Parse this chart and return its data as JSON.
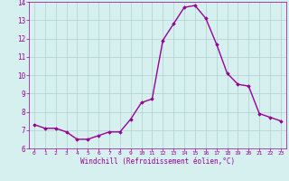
{
  "x": [
    0,
    1,
    2,
    3,
    4,
    5,
    6,
    7,
    8,
    9,
    10,
    11,
    12,
    13,
    14,
    15,
    16,
    17,
    18,
    19,
    20,
    21,
    22,
    23
  ],
  "y": [
    7.3,
    7.1,
    7.1,
    6.9,
    6.5,
    6.5,
    6.7,
    6.9,
    6.9,
    7.6,
    8.5,
    8.7,
    11.9,
    12.8,
    13.7,
    13.8,
    13.1,
    11.7,
    10.1,
    9.5,
    9.4,
    7.9,
    7.7,
    7.5
  ],
  "line_color": "#990099",
  "marker": "D",
  "marker_size": 1.8,
  "bg_color": "#d6f0f0",
  "grid_color": "#b0d0d0",
  "xlabel": "Windchill (Refroidissement éolien,°C)",
  "xlabel_color": "#990099",
  "tick_color": "#990099",
  "ylim": [
    6,
    14
  ],
  "xlim": [
    -0.5,
    23.5
  ],
  "yticks": [
    6,
    7,
    8,
    9,
    10,
    11,
    12,
    13,
    14
  ],
  "xticks": [
    0,
    1,
    2,
    3,
    4,
    5,
    6,
    7,
    8,
    9,
    10,
    11,
    12,
    13,
    14,
    15,
    16,
    17,
    18,
    19,
    20,
    21,
    22,
    23
  ],
  "line_width": 1.0,
  "axis_color": "#990099",
  "xtick_fontsize": 4.5,
  "ytick_fontsize": 5.5,
  "xlabel_fontsize": 5.5
}
